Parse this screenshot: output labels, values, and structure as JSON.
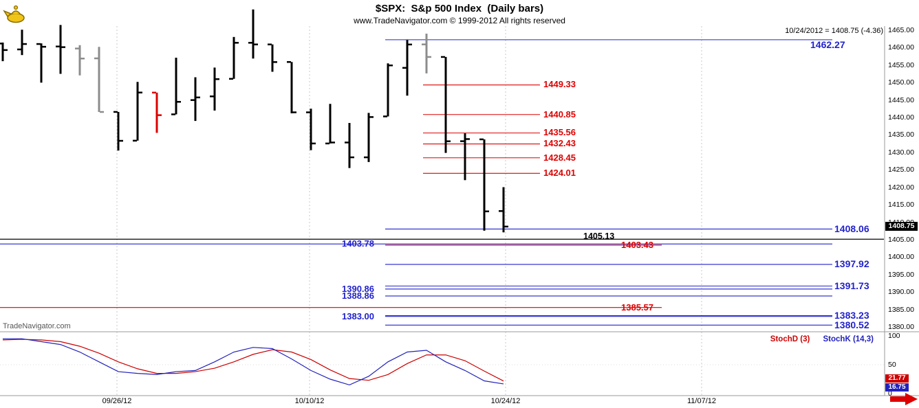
{
  "header": {
    "title": "$SPX:  S&p 500 Index  (Daily bars)",
    "subtitle": "www.TradeNavigator.com © 1999-2012 All rights reserved",
    "quote_info": "10/24/2012 = 1408.75 (-4.36)"
  },
  "watermark": "TradeNavigator.com",
  "colors": {
    "blue": "#2222cc",
    "red": "#dd0000",
    "black": "#000000",
    "gray": "#8c8c8c",
    "grid": "#c9c9c9",
    "stoch_red": "#cc0000",
    "stoch_blue": "#2222bb"
  },
  "chart_data": {
    "type": "ohlc",
    "title": "$SPX: S&p 500 Index (Daily bars)",
    "price_badge": "1408.75",
    "y_axis": {
      "min": 1380,
      "max": 1465,
      "step": 5,
      "tick_labels": [
        "1465.00",
        "1460.00",
        "1455.00",
        "1450.00",
        "1445.00",
        "1440.00",
        "1435.00",
        "1430.00",
        "1425.00",
        "1420.00",
        "1415.00",
        "1410.00",
        "1405.00",
        "1400.00",
        "1395.00",
        "1390.00",
        "1385.00",
        "1380.00"
      ]
    },
    "x_axis": {
      "ticks": [
        {
          "label": "09/26/12",
          "x": 170
        },
        {
          "label": "10/10/12",
          "x": 450
        },
        {
          "label": "10/24/12",
          "x": 735
        },
        {
          "label": "11/07/12",
          "x": 1020
        }
      ]
    },
    "bars": [
      {
        "date": "09/18/12",
        "o": 1461.19,
        "h": 1461.47,
        "l": 1456.13,
        "c": 1459.32,
        "color": "black"
      },
      {
        "date": "09/19/12",
        "o": 1459.5,
        "h": 1465.15,
        "l": 1457.88,
        "c": 1461.05,
        "color": "black"
      },
      {
        "date": "09/20/12",
        "o": 1461.05,
        "h": 1461.23,
        "l": 1449.98,
        "c": 1460.26,
        "color": "black"
      },
      {
        "date": "09/21/12",
        "o": 1460.34,
        "h": 1466.5,
        "l": 1452.5,
        "c": 1460.15,
        "color": "black"
      },
      {
        "date": "09/24/12",
        "o": 1459.76,
        "h": 1460.72,
        "l": 1452.06,
        "c": 1456.89,
        "color": "gray"
      },
      {
        "date": "09/25/12",
        "o": 1456.94,
        "h": 1460.24,
        "l": 1441.59,
        "c": 1441.59,
        "color": "gray"
      },
      {
        "date": "09/26/12",
        "o": 1441.6,
        "h": 1441.6,
        "l": 1430.53,
        "c": 1433.32,
        "color": "black"
      },
      {
        "date": "09/27/12",
        "o": 1433.36,
        "h": 1450.2,
        "l": 1433.36,
        "c": 1447.15,
        "color": "black"
      },
      {
        "date": "09/28/12",
        "o": 1447.13,
        "h": 1447.13,
        "l": 1435.6,
        "c": 1440.67,
        "color": "red"
      },
      {
        "date": "10/01/12",
        "o": 1440.9,
        "h": 1457.14,
        "l": 1440.9,
        "c": 1444.49,
        "color": "black"
      },
      {
        "date": "10/02/12",
        "o": 1444.99,
        "h": 1451.52,
        "l": 1439.01,
        "c": 1445.75,
        "color": "black"
      },
      {
        "date": "10/03/12",
        "o": 1446.05,
        "h": 1454.3,
        "l": 1441.99,
        "c": 1450.99,
        "color": "black"
      },
      {
        "date": "10/04/12",
        "o": 1451.08,
        "h": 1463.07,
        "l": 1451.08,
        "c": 1461.4,
        "color": "black"
      },
      {
        "date": "10/05/12",
        "o": 1461.4,
        "h": 1470.96,
        "l": 1456.89,
        "c": 1460.93,
        "color": "black"
      },
      {
        "date": "10/08/12",
        "o": 1460.93,
        "h": 1460.93,
        "l": 1453.1,
        "c": 1455.88,
        "color": "black"
      },
      {
        "date": "10/09/12",
        "o": 1455.9,
        "h": 1455.9,
        "l": 1441.18,
        "c": 1441.48,
        "color": "black"
      },
      {
        "date": "10/10/12",
        "o": 1441.48,
        "h": 1442.52,
        "l": 1430.64,
        "c": 1432.56,
        "color": "black"
      },
      {
        "date": "10/11/12",
        "o": 1432.56,
        "h": 1443.9,
        "l": 1432.56,
        "c": 1432.84,
        "color": "black"
      },
      {
        "date": "10/12/12",
        "o": 1432.84,
        "h": 1438.43,
        "l": 1425.53,
        "c": 1428.59,
        "color": "black"
      },
      {
        "date": "10/15/12",
        "o": 1428.59,
        "h": 1441.31,
        "l": 1427.24,
        "c": 1440.13,
        "color": "black"
      },
      {
        "date": "10/16/12",
        "o": 1440.31,
        "h": 1455.51,
        "l": 1440.31,
        "c": 1454.92,
        "color": "black"
      },
      {
        "date": "10/17/12",
        "o": 1454.22,
        "h": 1462.2,
        "l": 1446.26,
        "c": 1460.91,
        "color": "black"
      },
      {
        "date": "10/18/12",
        "o": 1460.94,
        "h": 1464.02,
        "l": 1452.63,
        "c": 1457.34,
        "color": "gray"
      },
      {
        "date": "10/19/12",
        "o": 1457.34,
        "h": 1457.34,
        "l": 1429.85,
        "c": 1433.19,
        "color": "black"
      },
      {
        "date": "10/22/12",
        "o": 1433.21,
        "h": 1435.46,
        "l": 1422.06,
        "c": 1433.82,
        "color": "black"
      },
      {
        "date": "10/23/12",
        "o": 1433.74,
        "h": 1433.74,
        "l": 1407.56,
        "c": 1413.11,
        "color": "black"
      },
      {
        "date": "10/24/12",
        "o": 1413.2,
        "h": 1420.04,
        "l": 1407.1,
        "c": 1408.75,
        "color": "black"
      }
    ],
    "levels": [
      {
        "label": "1462.27",
        "value": 1462.27,
        "color": "blue",
        "x1": 560,
        "x2": 1210,
        "label_x": 1178,
        "size": 14,
        "dy": 8
      },
      {
        "label": "1449.33",
        "value": 1449.33,
        "color": "red",
        "x1": 615,
        "x2": 785,
        "label_x": 790,
        "size": 13
      },
      {
        "label": "1440.85",
        "value": 1440.85,
        "color": "red",
        "x1": 615,
        "x2": 785,
        "label_x": 790,
        "size": 13
      },
      {
        "label": "1435.56",
        "value": 1435.56,
        "color": "red",
        "x1": 615,
        "x2": 785,
        "label_x": 790,
        "size": 13
      },
      {
        "label": "1432.43",
        "value": 1432.43,
        "color": "red",
        "x1": 615,
        "x2": 785,
        "label_x": 790,
        "size": 13
      },
      {
        "label": "1428.45",
        "value": 1428.45,
        "color": "red",
        "x1": 615,
        "x2": 785,
        "label_x": 790,
        "size": 13
      },
      {
        "label": "1424.01",
        "value": 1424.01,
        "color": "red",
        "x1": 615,
        "x2": 785,
        "label_x": 790,
        "size": 13
      },
      {
        "label": "1408.06",
        "value": 1408.06,
        "color": "blue",
        "x1": 560,
        "x2": 1210,
        "label_x": 1213,
        "size": 14
      },
      {
        "label": "1405.13",
        "value": 1405.13,
        "color": "black",
        "x1": 0,
        "x2": 1285,
        "label_x": 848,
        "size": 12.5,
        "dy": -3
      },
      {
        "label": "1403.78",
        "value": 1403.78,
        "color": "blue",
        "x1": 0,
        "x2": 1210,
        "label_x": 497,
        "size": 13
      },
      {
        "label": "1403.43",
        "value": 1403.43,
        "color": "red",
        "x1": 560,
        "x2": 962,
        "label_x": 903,
        "size": 13
      },
      {
        "label": "1397.92",
        "value": 1397.92,
        "color": "blue",
        "x1": 560,
        "x2": 1210,
        "label_x": 1213,
        "size": 14
      },
      {
        "label": "1391.73",
        "value": 1391.73,
        "color": "blue",
        "x1": 560,
        "x2": 1210,
        "label_x": 1213,
        "size": 14
      },
      {
        "label": "1390.86",
        "value": 1390.86,
        "color": "blue",
        "x1": 560,
        "x2": 1210,
        "label_x": 497,
        "size": 13
      },
      {
        "label": "1388.86",
        "value": 1388.86,
        "color": "blue",
        "x1": 560,
        "x2": 1210,
        "label_x": 497,
        "size": 13
      },
      {
        "label": "1385.57",
        "value": 1385.57,
        "color": "red",
        "x1": 0,
        "x2": 962,
        "label_x": 903,
        "size": 13
      },
      {
        "label": "1383.23",
        "value": 1383.23,
        "color": "blue",
        "x1": 560,
        "x2": 1210,
        "label_x": 1213,
        "size": 14
      },
      {
        "label": "1383.00",
        "value": 1383.0,
        "color": "blue",
        "x1": 560,
        "x2": 1210,
        "label_x": 497,
        "size": 13
      },
      {
        "label": "1380.52",
        "value": 1380.52,
        "color": "blue",
        "x1": 560,
        "x2": 1210,
        "label_x": 1213,
        "size": 14
      }
    ],
    "stochastic": {
      "d_label": "StochD (3)",
      "k_label": "StochK (14,3)",
      "badges": {
        "d": "21.77",
        "k": "16.75"
      },
      "y_ticks": [
        {
          "label": "100",
          "v": 100
        },
        {
          "label": "50",
          "v": 50
        },
        {
          "label": "0",
          "v": 0
        }
      ],
      "k": [
        95,
        95,
        90,
        85,
        72,
        55,
        38,
        35,
        33,
        38,
        40,
        55,
        72,
        80,
        78,
        60,
        40,
        25,
        15,
        30,
        55,
        72,
        75,
        55,
        40,
        22,
        16.75
      ],
      "d": [
        93,
        94,
        93,
        90,
        82,
        70,
        55,
        43,
        35,
        35,
        38,
        44,
        55,
        68,
        76,
        72,
        59,
        41,
        26,
        23,
        33,
        52,
        67,
        67,
        57,
        39,
        21.77
      ]
    }
  }
}
